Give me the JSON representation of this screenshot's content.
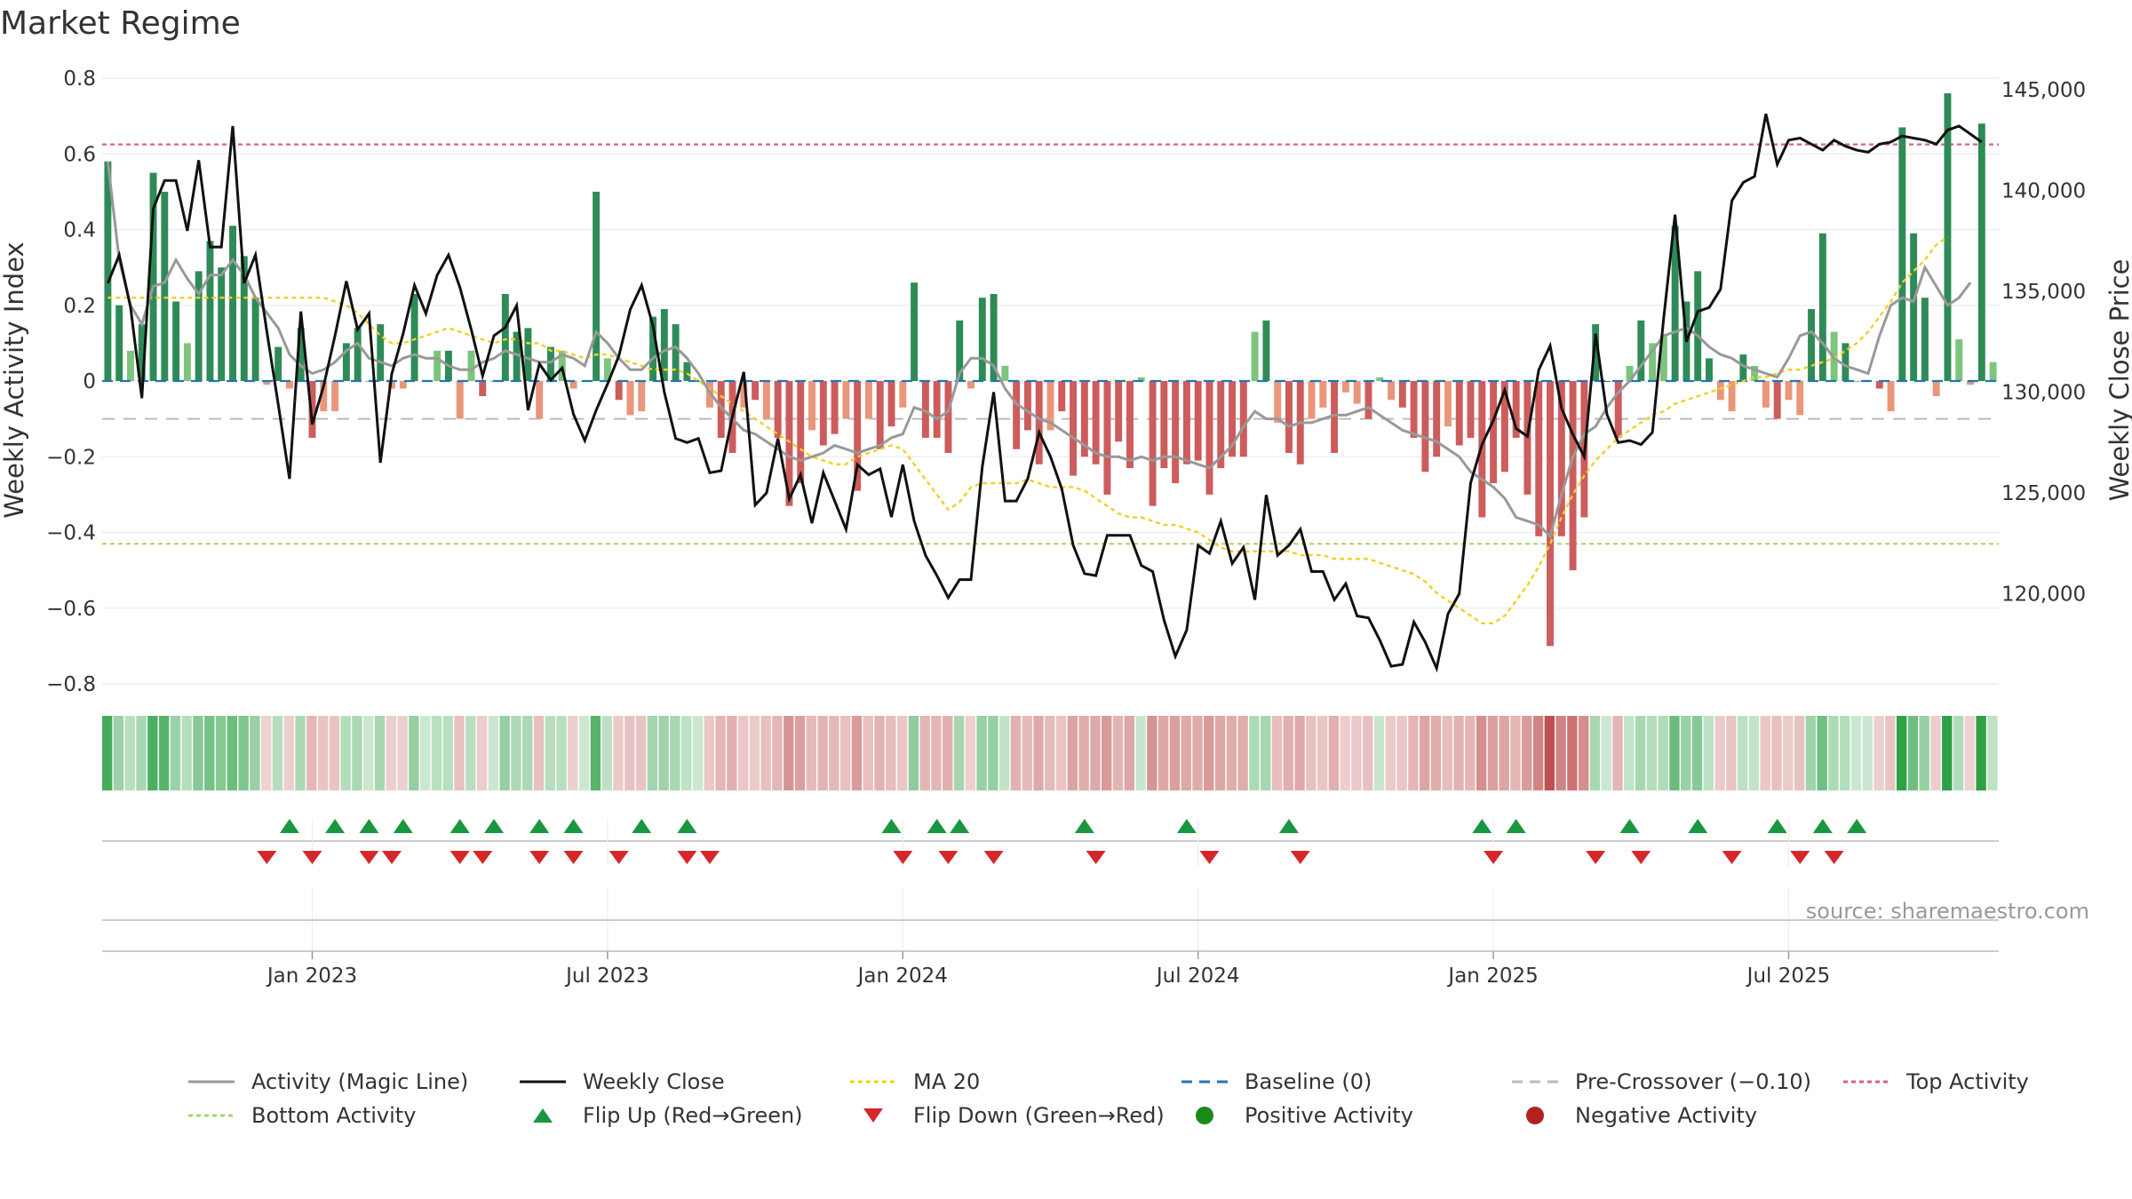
{
  "title": "Market Regime",
  "source": "source: sharemaestro.com",
  "colors": {
    "pos_strong": "#2e8b57",
    "pos_light": "#7dc47d",
    "neg_strong": "#cd5c5c",
    "neg_light": "#e9967a",
    "close": "#111111",
    "magic": "#999999",
    "ma": "#f2d024",
    "baseline": "#1f77b4",
    "pre": "#bbbbbb",
    "top": "#e0607e",
    "bottom": "#a8d672",
    "flip_up": "#1a9641",
    "flip_down": "#d62728"
  },
  "chart_data": {
    "type": "bar",
    "title": "Market Regime",
    "ylabel_left": "Weekly Activity Index",
    "ylabel_right": "Weekly Close Price",
    "ylim_left": [
      -0.85,
      0.82
    ],
    "ylim_right": [
      114000,
      146000
    ],
    "left_ticks": [
      "0.8",
      "0.6",
      "0.4",
      "0.2",
      "0",
      "−0.2",
      "−0.4",
      "−0.6",
      "−0.8"
    ],
    "left_tick_values": [
      0.8,
      0.6,
      0.4,
      0.2,
      0,
      -0.2,
      -0.4,
      -0.6,
      -0.8
    ],
    "right_ticks": [
      "145,000",
      "140,000",
      "135,000",
      "130,000",
      "125,000",
      "120,000"
    ],
    "right_tick_values": [
      145000,
      140000,
      135000,
      130000,
      125000,
      120000
    ],
    "x_ticks": [
      "Jan 2023",
      "Jul 2023",
      "Jan 2024",
      "Jul 2024",
      "Jan 2025",
      "Jul 2025"
    ],
    "x_tick_week_index": [
      18.5,
      44.5,
      70.5,
      96.5,
      122.5,
      148.5
    ],
    "top_activity": 0.625,
    "bottom_activity": -0.43,
    "baseline": 0,
    "pre_crossover": -0.1,
    "activity": [
      0.58,
      0.2,
      0.08,
      0.15,
      0.55,
      0.5,
      0.21,
      0.1,
      0.29,
      0.37,
      0.3,
      0.41,
      0.33,
      0.22,
      -0.01,
      0.09,
      -0.02,
      0.14,
      -0.15,
      -0.08,
      -0.08,
      0.1,
      0.14,
      0.0,
      0.15,
      -0.02,
      -0.02,
      0.23,
      0.0,
      0.08,
      0.08,
      -0.1,
      0.08,
      -0.04,
      0.0,
      0.23,
      0.13,
      0.14,
      -0.1,
      0.09,
      0.08,
      -0.02,
      0.0,
      0.5,
      0.06,
      -0.05,
      -0.09,
      -0.08,
      0.17,
      0.19,
      0.15,
      0.05,
      0.0,
      -0.07,
      -0.15,
      -0.19,
      -0.07,
      -0.05,
      -0.1,
      -0.15,
      -0.33,
      -0.27,
      -0.13,
      -0.17,
      -0.14,
      -0.1,
      -0.29,
      -0.1,
      -0.18,
      -0.12,
      -0.07,
      0.26,
      -0.15,
      -0.15,
      -0.19,
      0.16,
      -0.02,
      0.22,
      0.23,
      0.04,
      -0.18,
      -0.13,
      -0.22,
      -0.13,
      -0.08,
      -0.25,
      -0.2,
      -0.22,
      -0.3,
      -0.16,
      -0.23,
      0.01,
      -0.33,
      -0.23,
      -0.27,
      -0.22,
      -0.21,
      -0.3,
      -0.23,
      -0.2,
      -0.2,
      0.13,
      0.16,
      -0.11,
      -0.19,
      -0.22,
      -0.1,
      -0.07,
      -0.19,
      -0.03,
      -0.06,
      -0.1,
      0.01,
      -0.05,
      -0.07,
      -0.15,
      -0.24,
      -0.2,
      -0.12,
      -0.17,
      -0.15,
      -0.36,
      -0.27,
      -0.24,
      -0.15,
      -0.3,
      -0.41,
      -0.7,
      -0.41,
      -0.5,
      -0.36,
      0.15,
      0.0,
      -0.15,
      0.04,
      0.16,
      0.1,
      0.12,
      0.41,
      0.21,
      0.29,
      0.06,
      -0.05,
      -0.08,
      0.07,
      0.04,
      -0.07,
      -0.1,
      -0.05,
      -0.09,
      0.19,
      0.39,
      0.13,
      0.1,
      0.0,
      0.0,
      -0.02,
      -0.08,
      0.67,
      0.39,
      0.22,
      -0.04,
      0.76,
      0.11,
      -0.01,
      0.68,
      0.05
    ],
    "close": [
      135400,
      136800,
      134200,
      129700,
      139100,
      140500,
      140500,
      138000,
      141500,
      137200,
      137200,
      143200,
      135400,
      136800,
      133000,
      129400,
      125700,
      134000,
      128400,
      130300,
      132800,
      135500,
      133100,
      133900,
      126500,
      130900,
      132900,
      135300,
      133900,
      135800,
      136800,
      135200,
      133100,
      130800,
      132800,
      133200,
      134300,
      129100,
      131400,
      130600,
      131200,
      128900,
      127600,
      129100,
      130400,
      131800,
      134100,
      135300,
      133300,
      130000,
      127700,
      127500,
      127700,
      126000,
      126100,
      128800,
      131000,
      124400,
      125000,
      127700,
      124700,
      125900,
      123500,
      126000,
      124600,
      123200,
      126400,
      125900,
      126200,
      123800,
      126400,
      123600,
      121900,
      120900,
      119800,
      120700,
      120700,
      126300,
      130000,
      124600,
      124600,
      125700,
      128000,
      126800,
      125200,
      122400,
      121000,
      120900,
      122900,
      122900,
      122900,
      121400,
      121100,
      118700,
      116900,
      118200,
      122400,
      122000,
      123600,
      121500,
      122300,
      119700,
      124900,
      121900,
      122400,
      123200,
      121100,
      121100,
      119700,
      120500,
      118900,
      118800,
      117700,
      116400,
      116500,
      118600,
      117600,
      116300,
      119000,
      120000,
      125500,
      127400,
      128600,
      130100,
      128200,
      127800,
      131100,
      132300,
      129200,
      127900,
      126800,
      132900,
      128900,
      127500,
      127600,
      127400,
      128000,
      133700,
      138800,
      132500,
      134000,
      134200,
      135100,
      139500,
      140400,
      140700,
      143800,
      141300,
      142500,
      142600,
      142300,
      142000,
      142500,
      142200,
      142000,
      141900,
      142300,
      142400,
      142700,
      142600,
      142500,
      142300,
      143000,
      143200,
      142800,
      142400
    ],
    "magic": [
      0.58,
      0.32,
      0.2,
      0.15,
      0.25,
      0.26,
      0.32,
      0.27,
      0.23,
      0.28,
      0.28,
      0.32,
      0.28,
      0.22,
      0.18,
      0.14,
      0.07,
      0.04,
      0.02,
      0.03,
      0.05,
      0.08,
      0.1,
      0.06,
      0.05,
      0.04,
      0.06,
      0.07,
      0.06,
      0.06,
      0.04,
      0.03,
      0.03,
      0.05,
      0.06,
      0.08,
      0.07,
      0.06,
      0.05,
      0.05,
      0.07,
      0.06,
      0.04,
      0.13,
      0.1,
      0.06,
      0.03,
      0.03,
      0.06,
      0.08,
      0.09,
      0.06,
      0.02,
      -0.03,
      -0.07,
      -0.1,
      -0.13,
      -0.14,
      -0.16,
      -0.18,
      -0.2,
      -0.21,
      -0.2,
      -0.19,
      -0.17,
      -0.18,
      -0.19,
      -0.18,
      -0.17,
      -0.15,
      -0.14,
      -0.07,
      -0.08,
      -0.1,
      -0.08,
      0.02,
      0.06,
      0.06,
      0.04,
      -0.02,
      -0.06,
      -0.08,
      -0.1,
      -0.11,
      -0.13,
      -0.15,
      -0.17,
      -0.19,
      -0.2,
      -0.2,
      -0.21,
      -0.2,
      -0.21,
      -0.2,
      -0.2,
      -0.21,
      -0.22,
      -0.23,
      -0.2,
      -0.17,
      -0.12,
      -0.08,
      -0.1,
      -0.1,
      -0.12,
      -0.11,
      -0.11,
      -0.1,
      -0.09,
      -0.09,
      -0.08,
      -0.07,
      -0.09,
      -0.11,
      -0.13,
      -0.14,
      -0.15,
      -0.16,
      -0.18,
      -0.2,
      -0.24,
      -0.26,
      -0.28,
      -0.31,
      -0.36,
      -0.37,
      -0.38,
      -0.41,
      -0.3,
      -0.2,
      -0.14,
      -0.12,
      -0.07,
      -0.03,
      0.0,
      0.04,
      0.08,
      0.12,
      0.13,
      0.14,
      0.12,
      0.09,
      0.07,
      0.06,
      0.04,
      0.03,
      0.02,
      0.01,
      0.06,
      0.12,
      0.13,
      0.1,
      0.06,
      0.04,
      0.03,
      0.02,
      0.12,
      0.2,
      0.22,
      0.21,
      0.3,
      0.25,
      0.2,
      0.22,
      0.26
    ],
    "ma20": [
      0.22,
      0.22,
      0.22,
      0.22,
      0.22,
      0.22,
      0.22,
      0.22,
      0.22,
      0.22,
      0.22,
      0.22,
      0.22,
      0.22,
      0.22,
      0.22,
      0.22,
      0.22,
      0.22,
      0.22,
      0.21,
      0.2,
      0.18,
      0.15,
      0.12,
      0.1,
      0.1,
      0.11,
      0.12,
      0.13,
      0.14,
      0.13,
      0.12,
      0.11,
      0.1,
      0.11,
      0.11,
      0.1,
      0.1,
      0.08,
      0.08,
      0.07,
      0.06,
      0.07,
      0.07,
      0.06,
      0.05,
      0.04,
      0.03,
      0.03,
      0.03,
      0.02,
      0.0,
      -0.02,
      -0.04,
      -0.06,
      -0.08,
      -0.1,
      -0.12,
      -0.14,
      -0.16,
      -0.18,
      -0.2,
      -0.21,
      -0.22,
      -0.22,
      -0.2,
      -0.19,
      -0.18,
      -0.17,
      -0.18,
      -0.22,
      -0.26,
      -0.3,
      -0.34,
      -0.32,
      -0.28,
      -0.27,
      -0.27,
      -0.27,
      -0.27,
      -0.26,
      -0.27,
      -0.28,
      -0.28,
      -0.28,
      -0.29,
      -0.31,
      -0.33,
      -0.35,
      -0.36,
      -0.36,
      -0.37,
      -0.38,
      -0.38,
      -0.39,
      -0.4,
      -0.42,
      -0.44,
      -0.45,
      -0.45,
      -0.45,
      -0.45,
      -0.45,
      -0.45,
      -0.46,
      -0.46,
      -0.46,
      -0.47,
      -0.47,
      -0.47,
      -0.47,
      -0.48,
      -0.49,
      -0.5,
      -0.51,
      -0.53,
      -0.56,
      -0.58,
      -0.6,
      -0.62,
      -0.64,
      -0.64,
      -0.62,
      -0.58,
      -0.54,
      -0.49,
      -0.43,
      -0.36,
      -0.3,
      -0.25,
      -0.21,
      -0.18,
      -0.15,
      -0.13,
      -0.11,
      -0.09,
      -0.08,
      -0.06,
      -0.05,
      -0.04,
      -0.03,
      -0.02,
      -0.01,
      0.0,
      0.01,
      0.01,
      0.02,
      0.03,
      0.03,
      0.04,
      0.05,
      0.06,
      0.08,
      0.1,
      0.13,
      0.17,
      0.21,
      0.26,
      0.29,
      0.32,
      0.36,
      0.38
    ],
    "flip_up_weeks": [
      16,
      20,
      23,
      26,
      31,
      34,
      38,
      41,
      47,
      51,
      69,
      73,
      75,
      86,
      95,
      104,
      121,
      124,
      134,
      140,
      147,
      151,
      154
    ],
    "flip_down_weeks": [
      14,
      18,
      23,
      25,
      31,
      33,
      38,
      41,
      45,
      51,
      53,
      70,
      74,
      78,
      87,
      97,
      105,
      122,
      131,
      135,
      143,
      149,
      152
    ],
    "legend": [
      {
        "label": "Activity (Magic Line)",
        "kind": "line",
        "color": "#999999",
        "dash": "none"
      },
      {
        "label": "Weekly Close",
        "kind": "line",
        "color": "#111111",
        "dash": "none"
      },
      {
        "label": "MA 20",
        "kind": "line",
        "color": "#f2d024",
        "dash": "5,4"
      },
      {
        "label": "Baseline (0)",
        "kind": "line",
        "color": "#1f77b4",
        "dash": "12,8"
      },
      {
        "label": "Pre-Crossover (−0.10)",
        "kind": "line",
        "color": "#bbbbbb",
        "dash": "12,8"
      },
      {
        "label": "Top Activity",
        "kind": "line",
        "color": "#e0607e",
        "dash": "5,4"
      },
      {
        "label": "Bottom Activity",
        "kind": "line",
        "color": "#a8d672",
        "dash": "5,4"
      },
      {
        "label": "Flip Up (Red→Green)",
        "kind": "up",
        "color": "#1a9641"
      },
      {
        "label": "Flip Down (Green→Red)",
        "kind": "down",
        "color": "#d62728"
      },
      {
        "label": "Positive Activity",
        "kind": "dot",
        "color": "#1a8a1a"
      },
      {
        "label": "Negative Activity",
        "kind": "dot",
        "color": "#b22222"
      }
    ]
  }
}
